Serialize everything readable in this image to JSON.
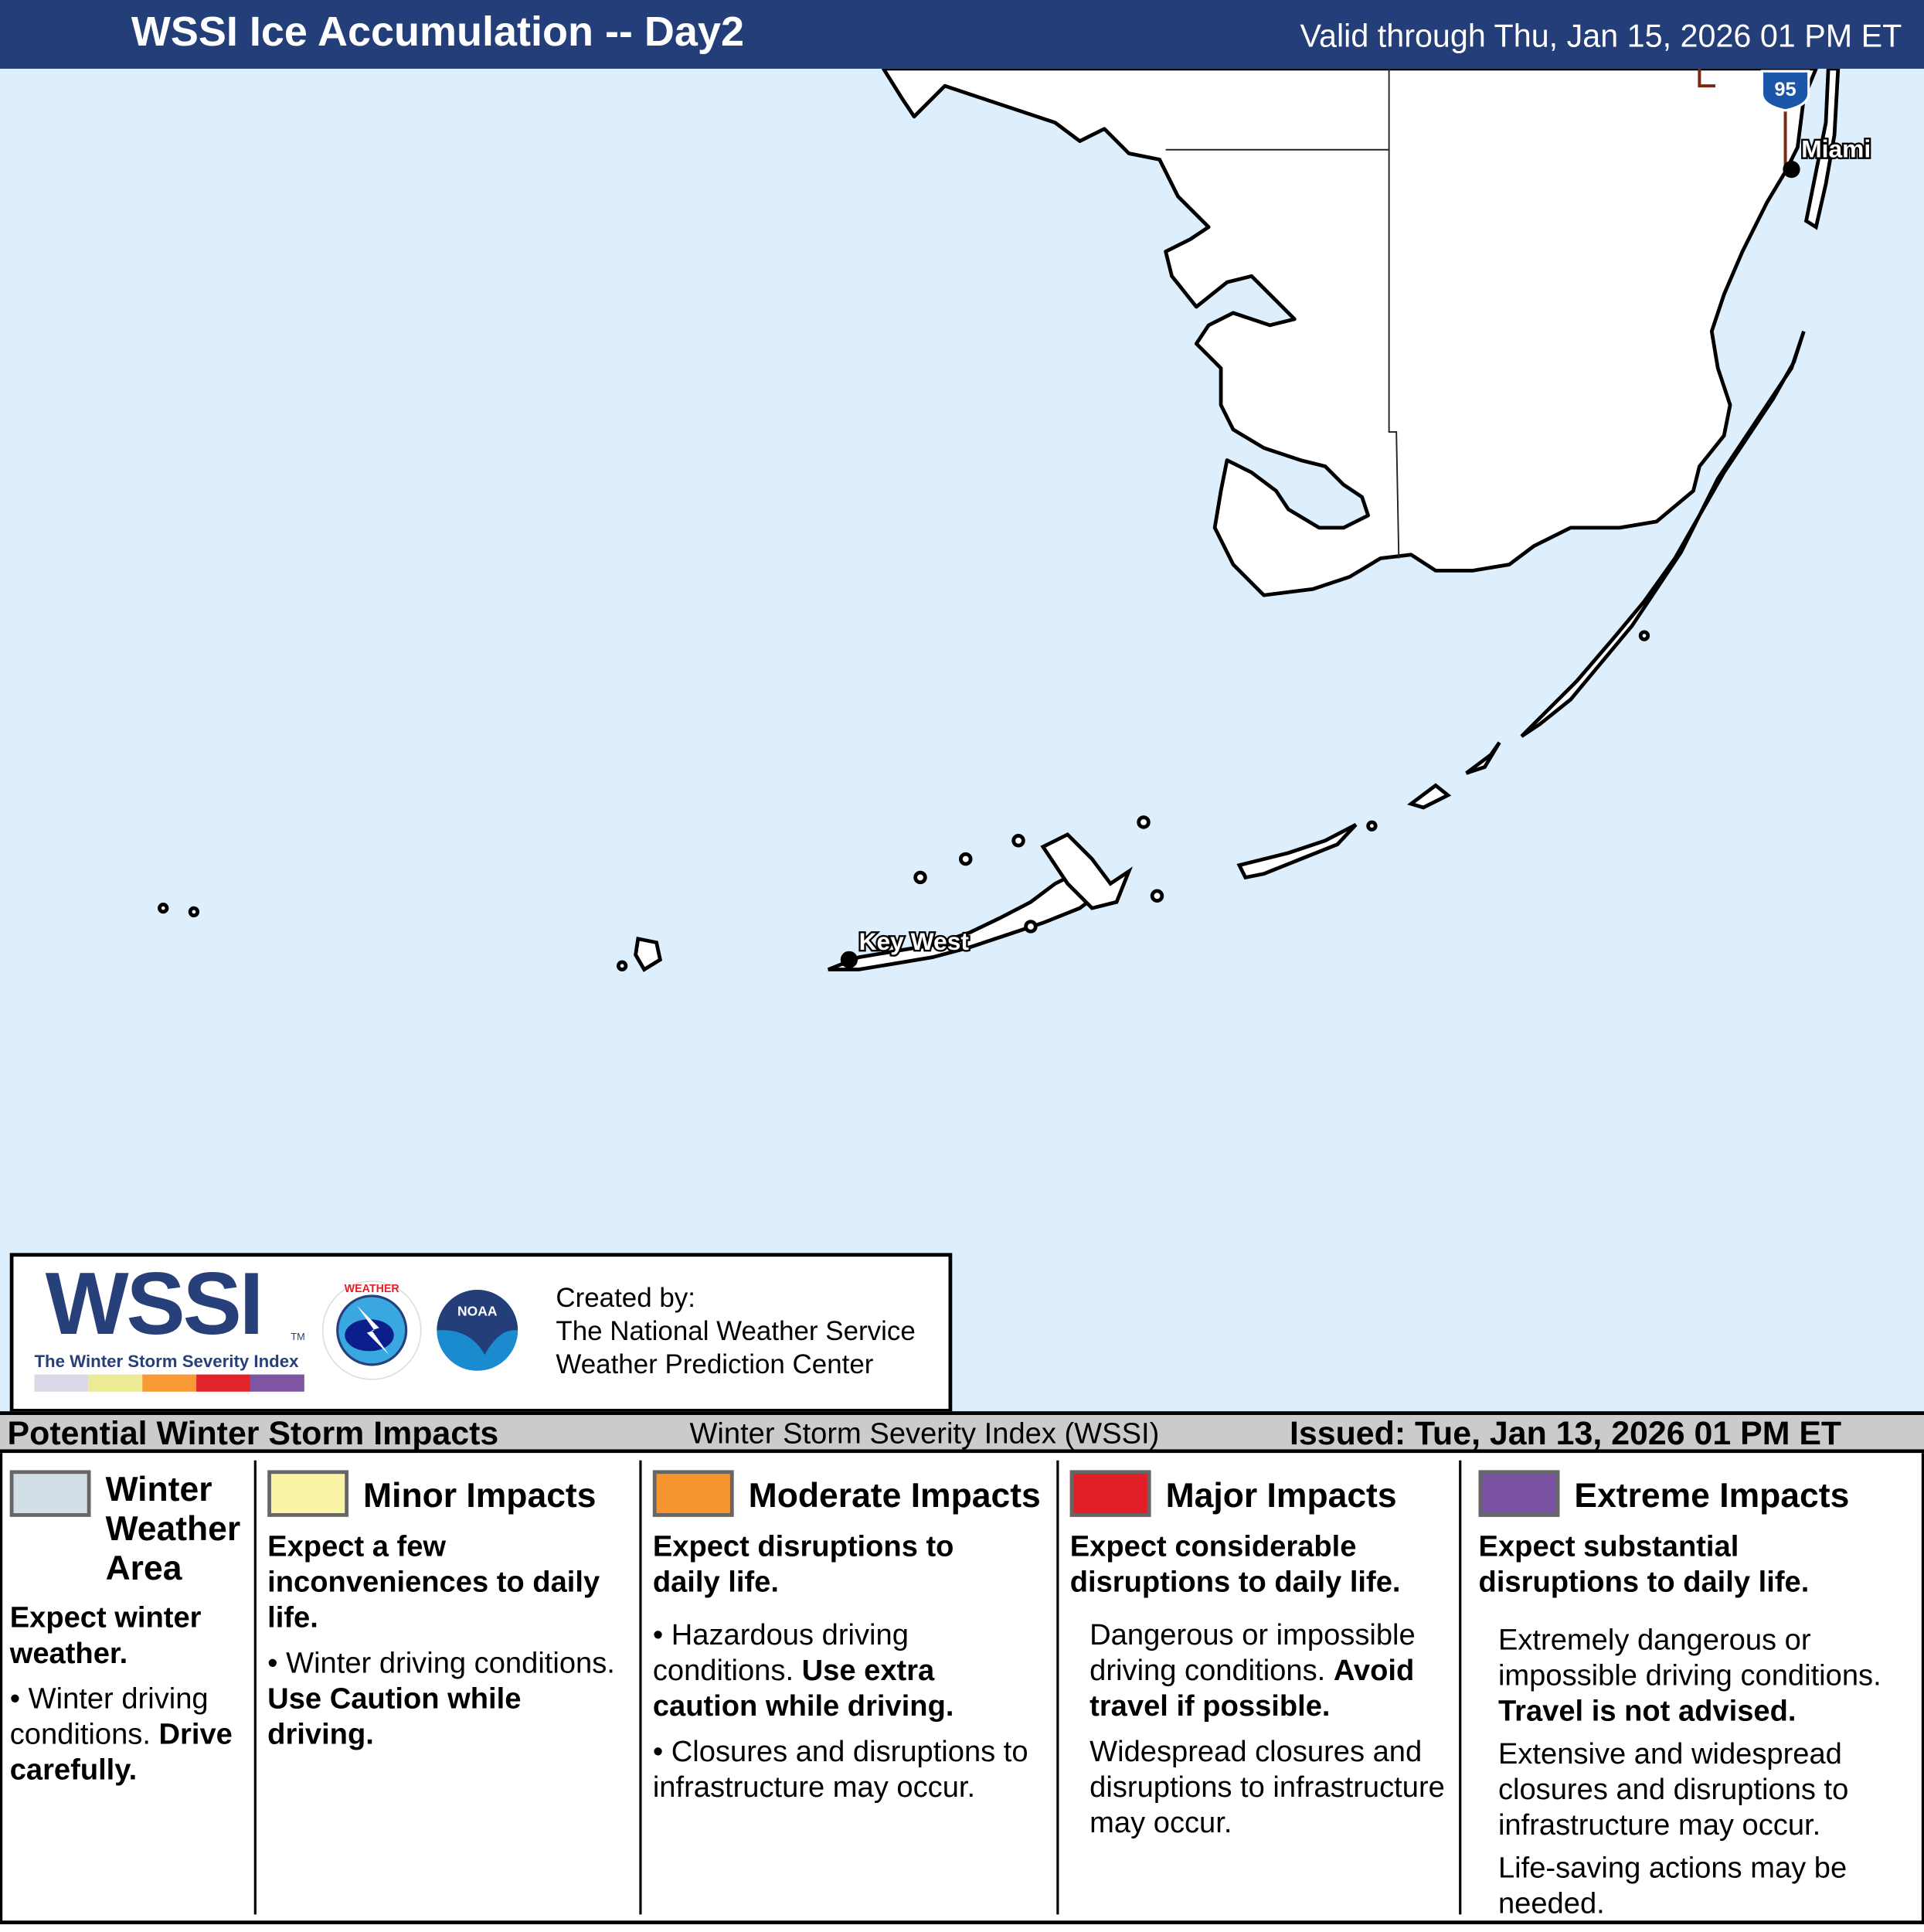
{
  "header": {
    "title": "WSSI Ice Accumulation -- Day2",
    "valid": "Valid through Thu, Jan 15, 2026 01 PM ET"
  },
  "map": {
    "cities": [
      "Miami",
      "Key West"
    ],
    "highway_shield": "95",
    "colors": {
      "water": "#ddeffd",
      "land": "#ffffff",
      "header": "#233e78"
    }
  },
  "logo": {
    "wssi": "WSSI",
    "tm": "TM",
    "subtitle": "The Winter Storm Severity Index",
    "nws": "NATIONAL WEATHER SERVICE",
    "noaa": "NOAA",
    "created": [
      "Created by:",
      "The National Weather Service",
      "Weather Prediction Center"
    ]
  },
  "impacts_bar": {
    "left": "Potential Winter Storm Impacts",
    "center": "Winter Storm Severity Index (WSSI)",
    "right": "Issued: Tue, Jan 13, 2026 01 PM ET"
  },
  "legend": [
    {
      "color": "#d3dfe6",
      "title": "Winter Weather Area",
      "lead": "Expect winter weather.",
      "body": "• Winter driving conditions.",
      "bold": "Drive carefully."
    },
    {
      "color": "#faf5a5",
      "title": "Minor Impacts",
      "lead": "Expect a few inconveniences to daily life.",
      "body": "• Winter driving conditions.",
      "bold": "Use Caution while driving."
    },
    {
      "color": "#f7962f",
      "title": "Moderate Impacts",
      "lead": "Expect disruptions to daily life.",
      "body": "• Hazardous driving conditions.",
      "bold": "Use extra caution while driving.",
      "extra": "• Closures and disruptions to infrastructure may occur."
    },
    {
      "color": "#e21f26",
      "title": "Major Impacts",
      "lead": "Expect considerable disruptions to daily life.",
      "body": "Dangerous or impossible driving conditions.",
      "bold": "Avoid travel if possible.",
      "extra": "Widespread closures and disruptions to infrastructure may occur."
    },
    {
      "color": "#7953a1",
      "title": "Extreme Impacts",
      "lead": "Expect substantial disruptions to daily life.",
      "body": "Extremely dangerous or impossible driving conditions.",
      "bold": "Travel is not advised.",
      "extra": "Extensive and widespread closures and disruptions to infrastructure may occur.",
      "extra2": "Life-saving actions may be needed."
    }
  ]
}
